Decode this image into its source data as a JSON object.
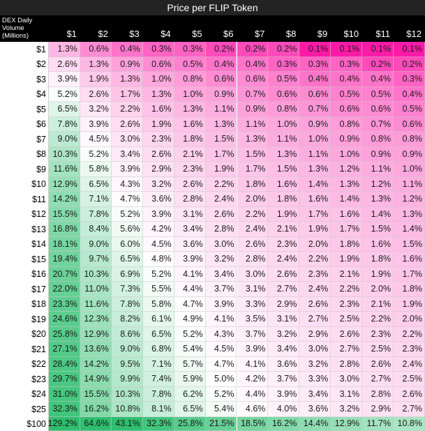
{
  "title": "Price per FLIP Token",
  "corner_label": "DEX Daily Volume (Millions)",
  "colors": {
    "high": "#2fbf6f",
    "mid": "#ffffff",
    "low": "#ff1aa8",
    "title_bg": "#232323",
    "header_bg": "#000000"
  },
  "chart_data": {
    "type": "heatmap",
    "title": "Price per FLIP Token",
    "xlabel": "Price per FLIP Token",
    "ylabel": "DEX Daily Volume (Millions)",
    "columns": [
      "$1",
      "$2",
      "$3",
      "$4",
      "$5",
      "$6",
      "$7",
      "$8",
      "$9",
      "$10",
      "$11",
      "$12"
    ],
    "rows": [
      "$1",
      "$2",
      "$3",
      "$4",
      "$5",
      "$6",
      "$7",
      "$8",
      "$9",
      "$10",
      "$11",
      "$12",
      "$13",
      "$14",
      "$15",
      "$16",
      "$17",
      "$18",
      "$19",
      "$20",
      "$21",
      "$22",
      "$23",
      "$24",
      "$25",
      "$100"
    ],
    "values": [
      [
        "1.3%",
        "0.6%",
        "0.4%",
        "0.3%",
        "0.3%",
        "0.2%",
        "0.2%",
        "0.2%",
        "0.1%",
        "0.1%",
        "0.1%",
        "0.1%"
      ],
      [
        "2.6%",
        "1.3%",
        "0.9%",
        "0.6%",
        "0.5%",
        "0.4%",
        "0.4%",
        "0.3%",
        "0.3%",
        "0.3%",
        "0.2%",
        "0.2%"
      ],
      [
        "3.9%",
        "1.9%",
        "1.3%",
        "1.0%",
        "0.8%",
        "0.6%",
        "0.6%",
        "0.5%",
        "0.4%",
        "0.4%",
        "0.4%",
        "0.3%"
      ],
      [
        "5.2%",
        "2.6%",
        "1.7%",
        "1.3%",
        "1.0%",
        "0.9%",
        "0.7%",
        "0.6%",
        "0.6%",
        "0.5%",
        "0.5%",
        "0.4%"
      ],
      [
        "6.5%",
        "3.2%",
        "2.2%",
        "1.6%",
        "1.3%",
        "1.1%",
        "0.9%",
        "0.8%",
        "0.7%",
        "0.6%",
        "0.6%",
        "0.5%"
      ],
      [
        "7.8%",
        "3.9%",
        "2.6%",
        "1.9%",
        "1.6%",
        "1.3%",
        "1.1%",
        "1.0%",
        "0.9%",
        "0.8%",
        "0.7%",
        "0.6%"
      ],
      [
        "9.0%",
        "4.5%",
        "3.0%",
        "2.3%",
        "1.8%",
        "1.5%",
        "1.3%",
        "1.1%",
        "1.0%",
        "0.9%",
        "0.8%",
        "0.8%"
      ],
      [
        "10.3%",
        "5.2%",
        "3.4%",
        "2.6%",
        "2.1%",
        "1.7%",
        "1.5%",
        "1.3%",
        "1.1%",
        "1.0%",
        "0.9%",
        "0.9%"
      ],
      [
        "11.6%",
        "5.8%",
        "3.9%",
        "2.9%",
        "2.3%",
        "1.9%",
        "1.7%",
        "1.5%",
        "1.3%",
        "1.2%",
        "1.1%",
        "1.0%"
      ],
      [
        "12.9%",
        "6.5%",
        "4.3%",
        "3.2%",
        "2.6%",
        "2.2%",
        "1.8%",
        "1.6%",
        "1.4%",
        "1.3%",
        "1.2%",
        "1.1%"
      ],
      [
        "14.2%",
        "7.1%",
        "4.7%",
        "3.6%",
        "2.8%",
        "2.4%",
        "2.0%",
        "1.8%",
        "1.6%",
        "1.4%",
        "1.3%",
        "1.2%"
      ],
      [
        "15.5%",
        "7.8%",
        "5.2%",
        "3.9%",
        "3.1%",
        "2.6%",
        "2.2%",
        "1.9%",
        "1.7%",
        "1.6%",
        "1.4%",
        "1.3%"
      ],
      [
        "16.8%",
        "8.4%",
        "5.6%",
        "4.2%",
        "3.4%",
        "2.8%",
        "2.4%",
        "2.1%",
        "1.9%",
        "1.7%",
        "1.5%",
        "1.4%"
      ],
      [
        "18.1%",
        "9.0%",
        "6.0%",
        "4.5%",
        "3.6%",
        "3.0%",
        "2.6%",
        "2.3%",
        "2.0%",
        "1.8%",
        "1.6%",
        "1.5%"
      ],
      [
        "19.4%",
        "9.7%",
        "6.5%",
        "4.8%",
        "3.9%",
        "3.2%",
        "2.8%",
        "2.4%",
        "2.2%",
        "1.9%",
        "1.8%",
        "1.6%"
      ],
      [
        "20.7%",
        "10.3%",
        "6.9%",
        "5.2%",
        "4.1%",
        "3.4%",
        "3.0%",
        "2.6%",
        "2.3%",
        "2.1%",
        "1.9%",
        "1.7%"
      ],
      [
        "22.0%",
        "11.0%",
        "7.3%",
        "5.5%",
        "4.4%",
        "3.7%",
        "3.1%",
        "2.7%",
        "2.4%",
        "2.2%",
        "2.0%",
        "1.8%"
      ],
      [
        "23.3%",
        "11.6%",
        "7.8%",
        "5.8%",
        "4.7%",
        "3.9%",
        "3.3%",
        "2.9%",
        "2.6%",
        "2.3%",
        "2.1%",
        "1.9%"
      ],
      [
        "24.6%",
        "12.3%",
        "8.2%",
        "6.1%",
        "4.9%",
        "4.1%",
        "3.5%",
        "3.1%",
        "2.7%",
        "2.5%",
        "2.2%",
        "2.0%"
      ],
      [
        "25.8%",
        "12.9%",
        "8.6%",
        "6.5%",
        "5.2%",
        "4.3%",
        "3.7%",
        "3.2%",
        "2.9%",
        "2.6%",
        "2.3%",
        "2.2%"
      ],
      [
        "27.1%",
        "13.6%",
        "9.0%",
        "6.8%",
        "5.4%",
        "4.5%",
        "3.9%",
        "3.4%",
        "3.0%",
        "2.7%",
        "2.5%",
        "2.3%"
      ],
      [
        "28.4%",
        "14.2%",
        "9.5%",
        "7.1%",
        "5.7%",
        "4.7%",
        "4.1%",
        "3.6%",
        "3.2%",
        "2.8%",
        "2.6%",
        "2.4%"
      ],
      [
        "29.7%",
        "14.9%",
        "9.9%",
        "7.4%",
        "5.9%",
        "5.0%",
        "4.2%",
        "3.7%",
        "3.3%",
        "3.0%",
        "2.7%",
        "2.5%"
      ],
      [
        "31.0%",
        "15.5%",
        "10.3%",
        "7.8%",
        "6.2%",
        "5.2%",
        "4.4%",
        "3.9%",
        "3.4%",
        "3.1%",
        "2.8%",
        "2.6%"
      ],
      [
        "32.3%",
        "16.2%",
        "10.8%",
        "8.1%",
        "6.5%",
        "5.4%",
        "4.6%",
        "4.0%",
        "3.6%",
        "3.2%",
        "2.9%",
        "2.7%"
      ],
      [
        "129.2%",
        "64.6%",
        "43.1%",
        "32.3%",
        "25.8%",
        "21.5%",
        "18.5%",
        "16.2%",
        "14.4%",
        "12.9%",
        "11.7%",
        "10.8%"
      ]
    ]
  }
}
